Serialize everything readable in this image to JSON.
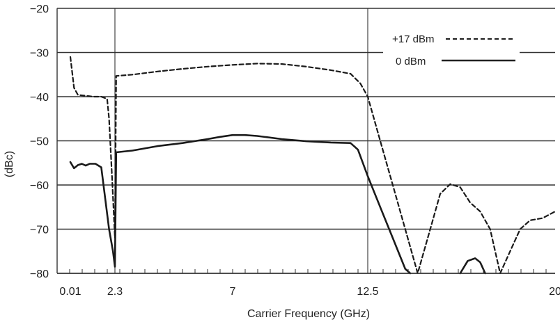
{
  "chart_data": {
    "type": "line",
    "xlabel": "Carrier Frequency (GHz)",
    "ylabel": "(dBc)",
    "ylim": [
      -80,
      -20
    ],
    "yticks": [
      -20,
      -30,
      -40,
      -50,
      -60,
      -70,
      -80
    ],
    "xticks": [
      {
        "value": 0.01,
        "label": "0.01"
      },
      {
        "value": 2.3,
        "label": "2.3"
      },
      {
        "value": 7,
        "label": "7"
      },
      {
        "value": 12.5,
        "label": "12.5"
      },
      {
        "value": 20,
        "label": "20"
      }
    ],
    "grid": "horizontal",
    "legend_position": "top-right",
    "series": [
      {
        "name": "+17 dBm",
        "style": "dashed",
        "x": [
          0.01,
          0.2,
          0.4,
          0.8,
          1.2,
          1.6,
          1.9,
          2.0,
          2.15,
          2.3,
          2.35,
          3,
          4,
          5,
          6,
          7,
          8,
          9,
          10,
          11,
          11.8,
          12.2,
          12.5,
          13,
          13.5,
          14,
          14.5,
          15,
          15.4,
          15.8,
          16.2,
          16.6,
          17,
          17.4,
          17.8,
          18.2,
          18.6,
          19,
          19.5,
          20
        ],
        "y": [
          -31,
          -38,
          -39.6,
          -39.8,
          -40,
          -40,
          -40.5,
          -45,
          -58,
          -72,
          -35.3,
          -35,
          -34.3,
          -33.7,
          -33.2,
          -32.8,
          -32.5,
          -32.6,
          -33.2,
          -34,
          -34.8,
          -37,
          -40,
          -50,
          -60,
          -70,
          -80,
          -70,
          -62,
          -59.8,
          -60.5,
          -64,
          -66,
          -70,
          -80,
          -75,
          -70,
          -68,
          -67.5,
          -66
        ]
      },
      {
        "name": "0 dBm",
        "style": "solid",
        "x": [
          0.01,
          0.2,
          0.4,
          0.6,
          0.8,
          1.0,
          1.3,
          1.6,
          1.8,
          2.0,
          2.2,
          2.3,
          2.35,
          3,
          4,
          5,
          6,
          6.5,
          7,
          7.5,
          8,
          9,
          10,
          11,
          11.8,
          12.1,
          12.5,
          13,
          13.5,
          14,
          14.2
        ],
        "y": [
          -54.8,
          -56.2,
          -55.5,
          -55.2,
          -55.6,
          -55.2,
          -55.2,
          -56,
          -63,
          -70,
          -75,
          -78.5,
          -52.6,
          -52.2,
          -51.2,
          -50.5,
          -49.6,
          -49.1,
          -48.7,
          -48.7,
          -48.9,
          -49.6,
          -50.1,
          -50.4,
          -50.5,
          -52,
          -58,
          -65,
          -72,
          -79,
          -80
        ]
      },
      {
        "name": "",
        "style": "solid",
        "x": [
          16.2,
          16.5,
          16.8,
          17.0,
          17.2
        ],
        "y": [
          -80,
          -77.2,
          -76.6,
          -77.5,
          -80
        ]
      }
    ]
  }
}
